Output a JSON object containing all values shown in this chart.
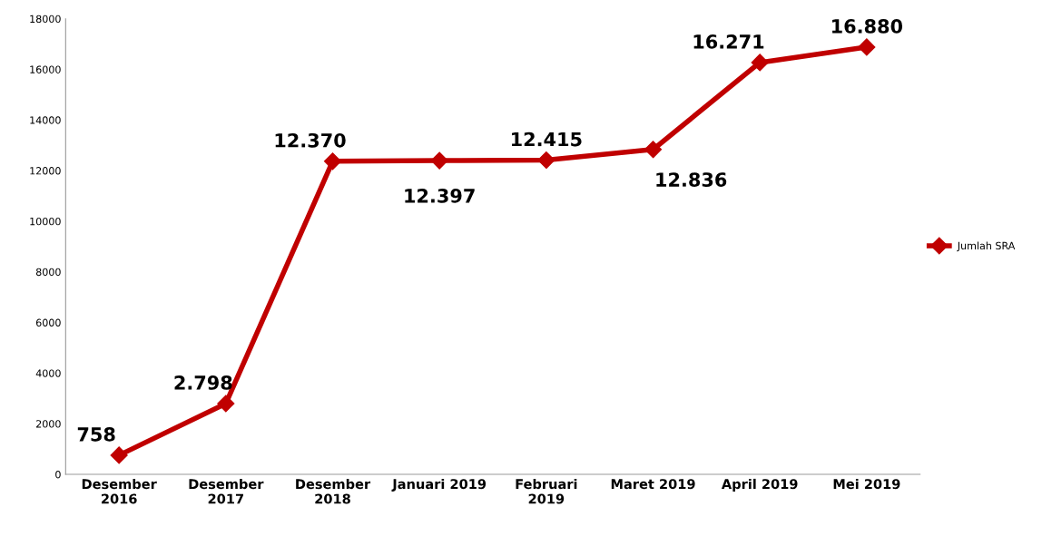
{
  "chart_data": {
    "type": "line",
    "categories": [
      "Desember\n2016",
      "Desember\n2017",
      "Desember\n2018",
      "Januari 2019",
      "Februari\n2019",
      "Maret 2019",
      "April 2019",
      "Mei 2019"
    ],
    "series": [
      {
        "name": "Jumlah SRA",
        "color": "#c00000",
        "values": [
          758,
          2798,
          12370,
          12397,
          12415,
          12836,
          16271,
          16880
        ]
      }
    ],
    "value_labels": [
      "758",
      "2.798",
      "12.370",
      "12.397",
      "12.415",
      "12.836",
      "16.271",
      "16.880"
    ],
    "ylim": [
      0,
      18000
    ],
    "yticks": [
      0,
      2000,
      4000,
      6000,
      8000,
      10000,
      12000,
      14000,
      16000,
      18000
    ],
    "grid": false,
    "legend": "right",
    "marker": "diamond",
    "line_style": "solid"
  }
}
